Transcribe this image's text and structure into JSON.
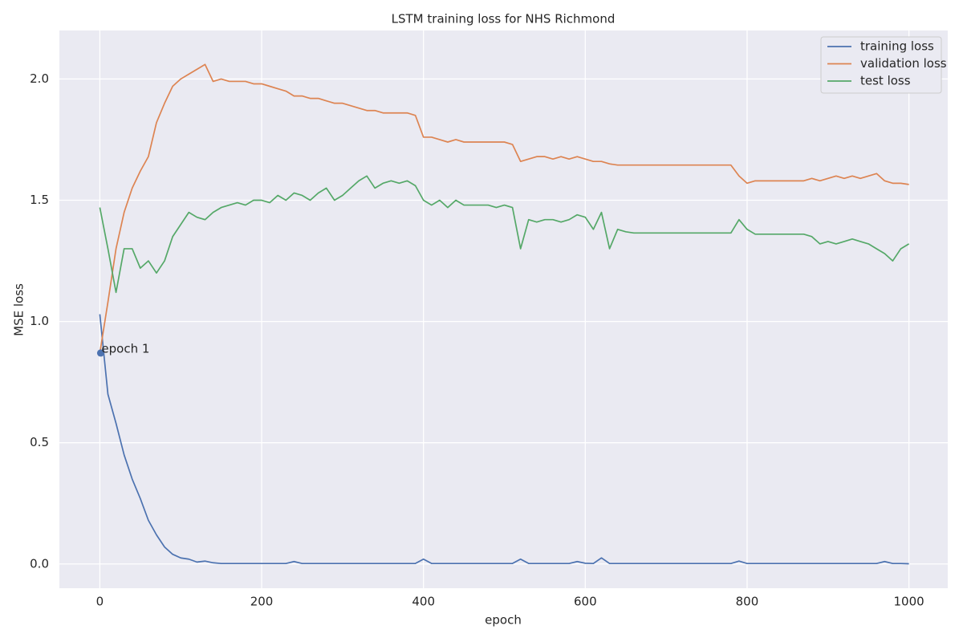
{
  "chart_data": {
    "type": "line",
    "title": "LSTM training loss for NHS Richmond",
    "xlabel": "epoch",
    "ylabel": "MSE loss",
    "x": [
      0,
      10,
      20,
      30,
      40,
      50,
      60,
      70,
      80,
      90,
      100,
      110,
      120,
      130,
      140,
      150,
      160,
      170,
      180,
      190,
      200,
      210,
      220,
      230,
      240,
      250,
      260,
      270,
      280,
      290,
      300,
      310,
      320,
      330,
      340,
      350,
      360,
      370,
      380,
      390,
      400,
      410,
      420,
      430,
      440,
      450,
      460,
      470,
      480,
      490,
      500,
      510,
      520,
      530,
      540,
      550,
      560,
      570,
      580,
      590,
      600,
      610,
      620,
      630,
      640,
      650,
      660,
      670,
      680,
      690,
      700,
      710,
      720,
      730,
      740,
      750,
      760,
      770,
      780,
      790,
      800,
      810,
      820,
      830,
      840,
      850,
      860,
      870,
      880,
      890,
      900,
      910,
      920,
      930,
      940,
      950,
      960,
      970,
      980,
      990,
      1000
    ],
    "series": [
      {
        "name": "training loss",
        "color": "#4c72b0",
        "values": [
          1.03,
          0.7,
          0.58,
          0.45,
          0.35,
          0.27,
          0.18,
          0.12,
          0.07,
          0.04,
          0.025,
          0.02,
          0.008,
          0.012,
          0.005,
          0.002,
          0.002,
          0.002,
          0.002,
          0.002,
          0.002,
          0.002,
          0.002,
          0.002,
          0.01,
          0.002,
          0.002,
          0.002,
          0.002,
          0.002,
          0.002,
          0.002,
          0.002,
          0.002,
          0.002,
          0.002,
          0.002,
          0.002,
          0.002,
          0.002,
          0.02,
          0.002,
          0.002,
          0.002,
          0.002,
          0.002,
          0.002,
          0.002,
          0.002,
          0.002,
          0.002,
          0.002,
          0.02,
          0.002,
          0.002,
          0.002,
          0.002,
          0.002,
          0.002,
          0.01,
          0.003,
          0.002,
          0.025,
          0.002,
          0.002,
          0.002,
          0.002,
          0.002,
          0.002,
          0.002,
          0.002,
          0.002,
          0.002,
          0.002,
          0.002,
          0.002,
          0.002,
          0.002,
          0.002,
          0.012,
          0.002,
          0.002,
          0.002,
          0.002,
          0.002,
          0.002,
          0.002,
          0.002,
          0.002,
          0.002,
          0.002,
          0.002,
          0.002,
          0.002,
          0.002,
          0.002,
          0.002,
          0.01,
          0.002,
          0.002,
          0.001
        ]
      },
      {
        "name": "validation loss",
        "color": "#dd8452",
        "values": [
          0.87,
          1.08,
          1.3,
          1.45,
          1.55,
          1.62,
          1.68,
          1.82,
          1.9,
          1.97,
          2.0,
          2.02,
          2.04,
          2.06,
          1.99,
          2.0,
          1.99,
          1.99,
          1.99,
          1.98,
          1.98,
          1.97,
          1.96,
          1.95,
          1.93,
          1.93,
          1.92,
          1.92,
          1.91,
          1.9,
          1.9,
          1.89,
          1.88,
          1.87,
          1.87,
          1.86,
          1.86,
          1.86,
          1.86,
          1.85,
          1.76,
          1.76,
          1.75,
          1.74,
          1.75,
          1.74,
          1.74,
          1.74,
          1.74,
          1.74,
          1.74,
          1.73,
          1.66,
          1.67,
          1.68,
          1.68,
          1.67,
          1.68,
          1.67,
          1.68,
          1.67,
          1.66,
          1.66,
          1.65,
          1.645,
          1.645,
          1.645,
          1.645,
          1.645,
          1.645,
          1.645,
          1.645,
          1.645,
          1.645,
          1.645,
          1.645,
          1.645,
          1.645,
          1.645,
          1.6,
          1.57,
          1.58,
          1.58,
          1.58,
          1.58,
          1.58,
          1.58,
          1.58,
          1.59,
          1.58,
          1.59,
          1.6,
          1.59,
          1.6,
          1.59,
          1.6,
          1.61,
          1.58,
          1.57,
          1.57,
          1.565
        ]
      },
      {
        "name": "test loss",
        "color": "#55a868",
        "values": [
          1.47,
          1.3,
          1.12,
          1.3,
          1.3,
          1.22,
          1.25,
          1.2,
          1.25,
          1.35,
          1.4,
          1.45,
          1.43,
          1.42,
          1.45,
          1.47,
          1.48,
          1.49,
          1.48,
          1.5,
          1.5,
          1.49,
          1.52,
          1.5,
          1.53,
          1.52,
          1.5,
          1.53,
          1.55,
          1.5,
          1.52,
          1.55,
          1.58,
          1.6,
          1.55,
          1.57,
          1.58,
          1.57,
          1.58,
          1.56,
          1.5,
          1.48,
          1.5,
          1.47,
          1.5,
          1.48,
          1.48,
          1.48,
          1.48,
          1.47,
          1.48,
          1.47,
          1.3,
          1.42,
          1.41,
          1.42,
          1.42,
          1.41,
          1.42,
          1.44,
          1.43,
          1.38,
          1.45,
          1.3,
          1.38,
          1.37,
          1.365,
          1.365,
          1.365,
          1.365,
          1.365,
          1.365,
          1.365,
          1.365,
          1.365,
          1.365,
          1.365,
          1.365,
          1.365,
          1.42,
          1.38,
          1.36,
          1.36,
          1.36,
          1.36,
          1.36,
          1.36,
          1.36,
          1.35,
          1.32,
          1.33,
          1.32,
          1.33,
          1.34,
          1.33,
          1.32,
          1.3,
          1.28,
          1.25,
          1.3,
          1.32
        ]
      }
    ],
    "annotations": [
      {
        "text": "epoch 1",
        "x": 1,
        "y": 0.87
      }
    ],
    "xlim": [
      -50,
      1048
    ],
    "ylim": [
      -0.1,
      2.2
    ],
    "xticks": [
      0,
      200,
      400,
      600,
      800,
      1000
    ],
    "yticks": [
      {
        "value": 0,
        "label": "0.0"
      },
      0.5,
      {
        "value": 1,
        "label": "1.0"
      },
      1.5,
      {
        "value": 2,
        "label": "2.0"
      }
    ],
    "grid": true,
    "legend": "upper right"
  }
}
